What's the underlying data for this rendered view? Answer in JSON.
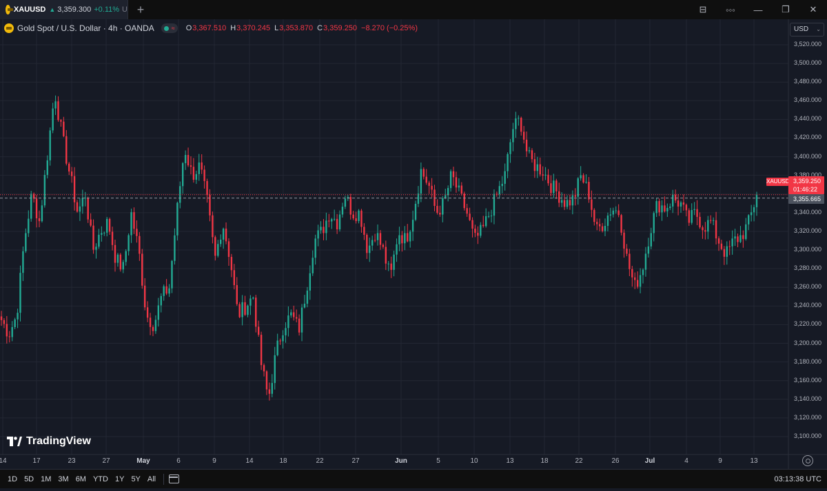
{
  "tab": {
    "symbol": "XAUUSD",
    "arrow": "▲",
    "price": "3,359.300",
    "change": "+0.11%",
    "truncated": "U",
    "new_tab": "+"
  },
  "window_controls": {
    "layout_icon": "⊟",
    "more_icon": "◦◦◦",
    "minimize": "—",
    "maximize": "❐",
    "close": "✕"
  },
  "legend": {
    "title": "Gold Spot / U.S. Dollar · 4h · OANDA",
    "market_status_icon": "≈",
    "open_key": "O",
    "open": "3,367.510",
    "high_key": "H",
    "high": "3,370.245",
    "low_key": "L",
    "low": "3,353.870",
    "close_key": "C",
    "close": "3,359.250",
    "change": "−8.270 (−0.25%)"
  },
  "currency": {
    "value": "USD",
    "chevron": "⌄"
  },
  "price_axis": {
    "min": 3090,
    "max": 3530,
    "ticks": [
      "3,520.000",
      "3,500.000",
      "3,480.000",
      "3,460.000",
      "3,440.000",
      "3,420.000",
      "3,400.000",
      "3,380.000",
      "3,360.000",
      "3,340.000",
      "3,320.000",
      "3,300.000",
      "3,280.000",
      "3,260.000",
      "3,240.000",
      "3,220.000",
      "3,200.000",
      "3,180.000",
      "3,160.000",
      "3,140.000",
      "3,120.000",
      "3,100.000"
    ]
  },
  "time_axis": {
    "labels": [
      {
        "text": "14",
        "bold": false
      },
      {
        "text": "17",
        "bold": false
      },
      {
        "text": "23",
        "bold": false
      },
      {
        "text": "27",
        "bold": false
      },
      {
        "text": "May",
        "bold": true
      },
      {
        "text": "6",
        "bold": false
      },
      {
        "text": "9",
        "bold": false
      },
      {
        "text": "14",
        "bold": false
      },
      {
        "text": "18",
        "bold": false
      },
      {
        "text": "22",
        "bold": false
      },
      {
        "text": "27",
        "bold": false
      },
      {
        "text": "Jun",
        "bold": true
      },
      {
        "text": "5",
        "bold": false
      },
      {
        "text": "10",
        "bold": false
      },
      {
        "text": "13",
        "bold": false
      },
      {
        "text": "18",
        "bold": false
      },
      {
        "text": "22",
        "bold": false
      },
      {
        "text": "26",
        "bold": false
      },
      {
        "text": "Jul",
        "bold": true
      },
      {
        "text": "4",
        "bold": false
      },
      {
        "text": "9",
        "bold": false
      },
      {
        "text": "13",
        "bold": false
      }
    ]
  },
  "current_price": {
    "symbol": "XAUUSD",
    "price": "3,359.250",
    "countdown": "01:46:22",
    "value": 3359.25
  },
  "crosshair_price": {
    "price": "3,355.665",
    "value": 3355.665
  },
  "watermark": "TradingView",
  "bottom_bar": {
    "ranges": [
      "1D",
      "5D",
      "1M",
      "3M",
      "6M",
      "YTD",
      "1Y",
      "5Y",
      "All"
    ],
    "clock": "03:13:38 UTC"
  },
  "colors": {
    "up": "#22ab94",
    "down": "#f23645",
    "background": "#161a25",
    "grid": "#232733"
  },
  "chart_data": {
    "type": "candlestick",
    "title": "Gold Spot / U.S. Dollar · 4h · OANDA",
    "ylim": [
      3090,
      3530
    ],
    "path": [
      3225,
      3210,
      3230,
      3310,
      3360,
      3330,
      3400,
      3470,
      3420,
      3380,
      3340,
      3360,
      3300,
      3320,
      3330,
      3290,
      3280,
      3340,
      3300,
      3230,
      3220,
      3250,
      3260,
      3340,
      3410,
      3380,
      3390,
      3350,
      3290,
      3330,
      3290,
      3230,
      3240,
      3250,
      3180,
      3140,
      3190,
      3220,
      3230,
      3215,
      3260,
      3310,
      3320,
      3340,
      3330,
      3360,
      3340,
      3340,
      3300,
      3320,
      3300,
      3270,
      3320,
      3310,
      3340,
      3385,
      3370,
      3340,
      3350,
      3380,
      3360,
      3340,
      3310,
      3320,
      3340,
      3360,
      3380,
      3430,
      3440,
      3400,
      3390,
      3385,
      3370,
      3360,
      3350,
      3355,
      3380,
      3360,
      3320,
      3330,
      3345,
      3340,
      3290,
      3260,
      3280,
      3320,
      3350,
      3345,
      3355,
      3350,
      3330,
      3340,
      3325,
      3330,
      3310,
      3295,
      3310,
      3315,
      3330,
      3359.25
    ]
  }
}
